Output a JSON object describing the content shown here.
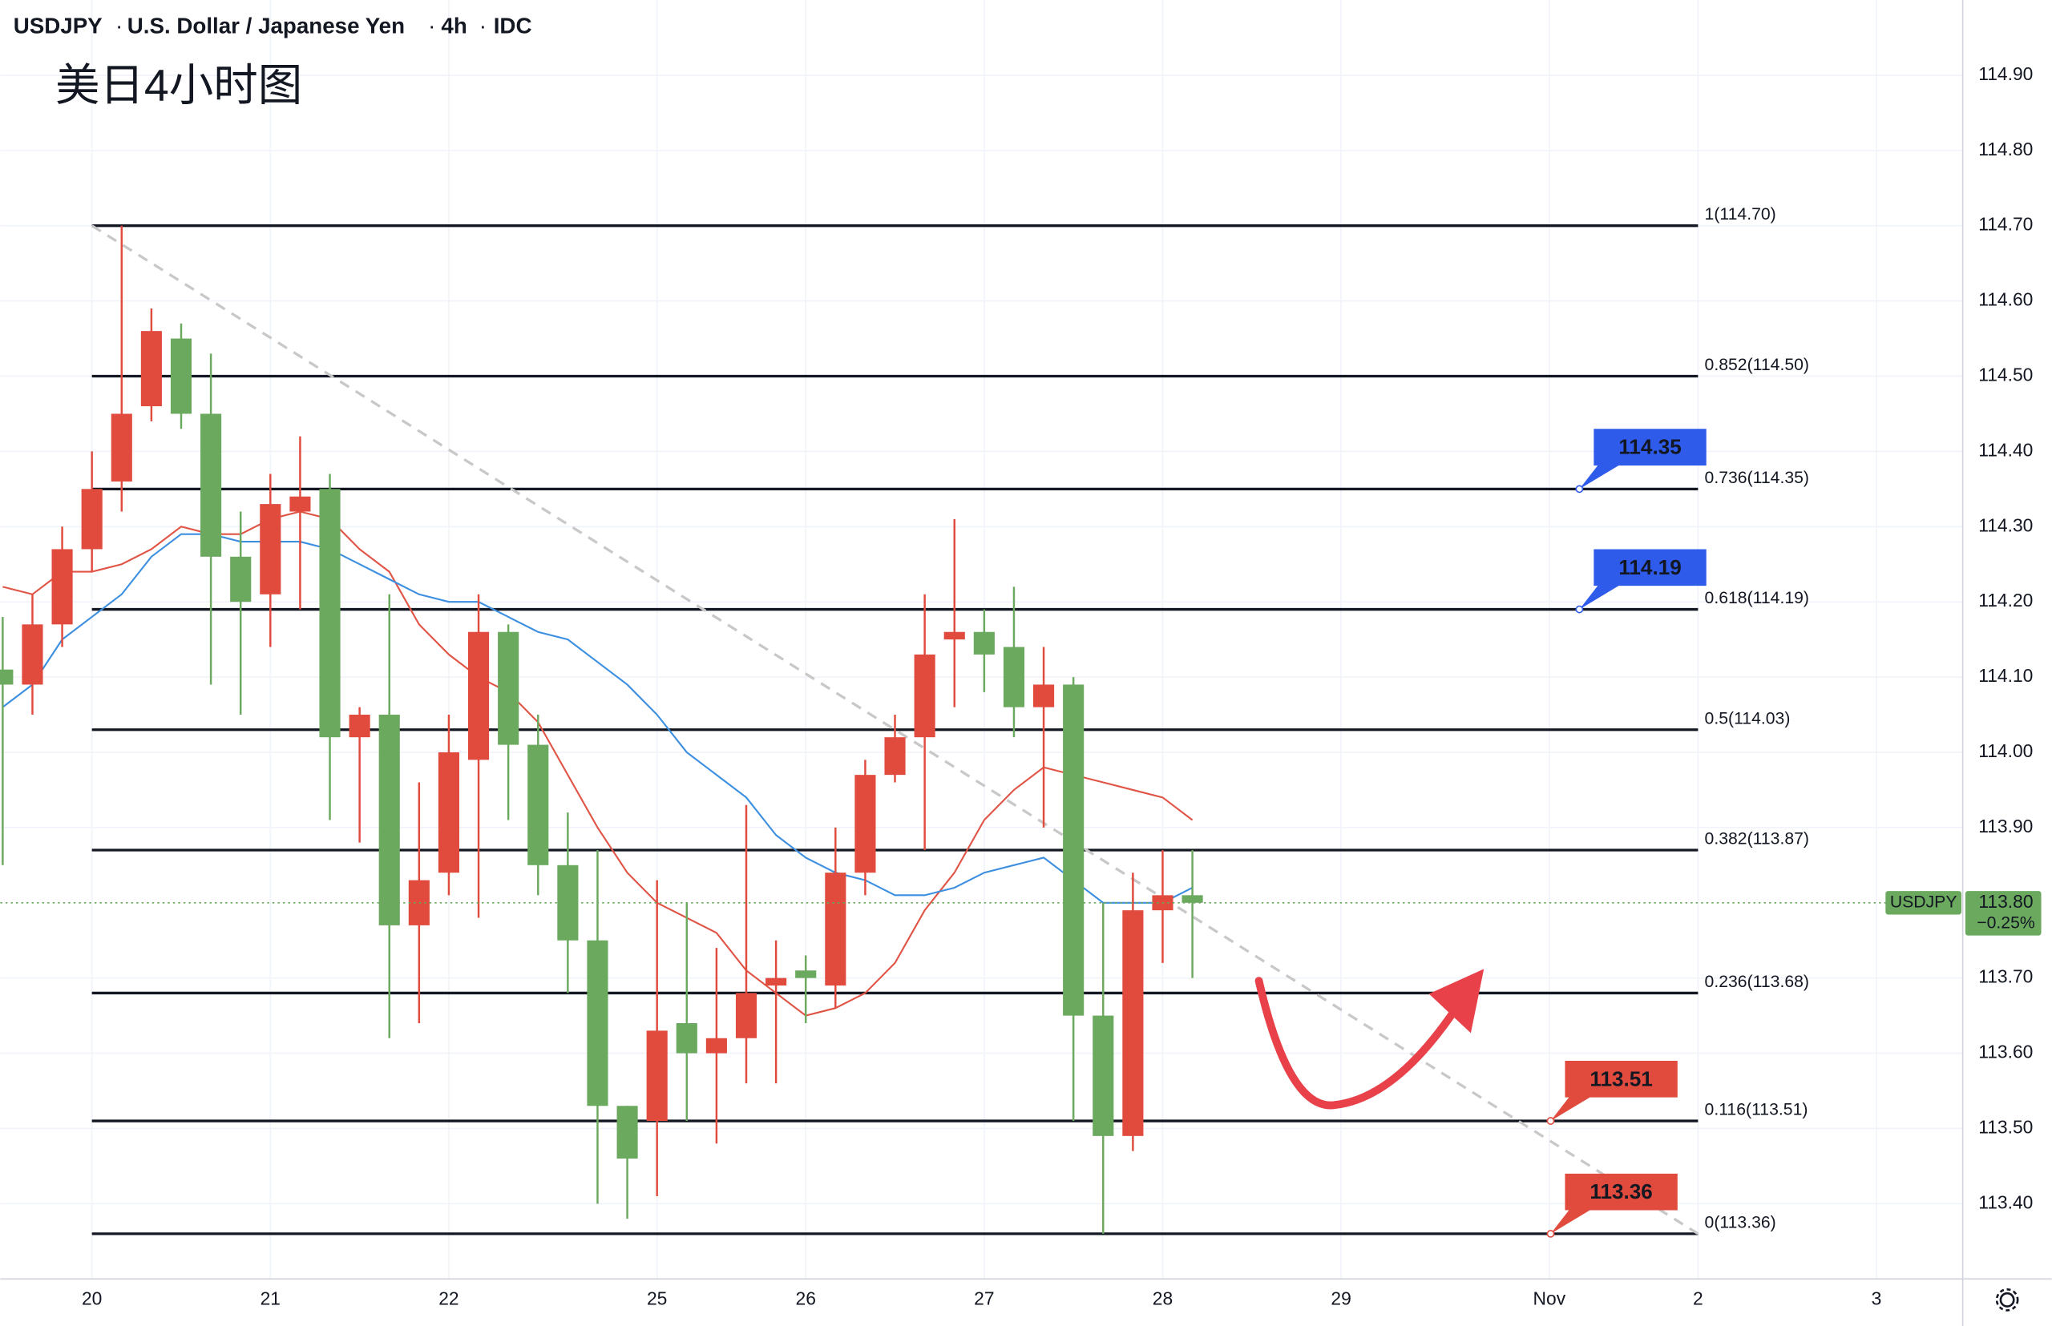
{
  "chart_data": {
    "type": "candlestick",
    "symbol": "USDJPY",
    "description": "U.S. Dollar / Japanese Yen",
    "interval": "4h",
    "source": "IDC",
    "title": "美日4小时图",
    "up_color": "#6aa95e",
    "down_color": "#e04b3e",
    "x": [
      0,
      1,
      2,
      3,
      4,
      5,
      6,
      7,
      8,
      9,
      10,
      11,
      12,
      13,
      14,
      15,
      16,
      17,
      18,
      19,
      20,
      21,
      22,
      23,
      24,
      25,
      26,
      27,
      28,
      29,
      30,
      31,
      32,
      33,
      34,
      35,
      36,
      37,
      38,
      39,
      40
    ],
    "open": [
      114.09,
      114.17,
      114.27,
      114.35,
      114.45,
      114.56,
      114.45,
      114.26,
      114.2,
      114.33,
      114.34,
      114.02,
      114.05,
      113.77,
      113.83,
      114.0,
      114.16,
      114.01,
      113.85,
      113.75,
      113.53,
      113.46,
      113.63,
      113.6,
      113.62,
      113.68,
      113.7,
      113.7,
      113.84,
      113.97,
      114.02,
      114.13,
      114.16,
      114.13,
      114.06,
      114.09,
      113.65,
      113.49,
      113.79,
      113.81,
      113.8
    ],
    "high": [
      114.18,
      114.21,
      114.3,
      114.4,
      114.7,
      114.59,
      114.57,
      114.53,
      114.32,
      114.37,
      114.42,
      114.37,
      114.06,
      114.21,
      113.96,
      114.05,
      114.21,
      114.17,
      114.05,
      113.92,
      113.87,
      113.53,
      113.83,
      113.8,
      113.74,
      113.93,
      113.75,
      113.73,
      113.9,
      113.99,
      114.05,
      114.21,
      114.31,
      114.19,
      114.22,
      114.14,
      114.1,
      113.8,
      113.84,
      113.87,
      113.87
    ],
    "low": [
      113.85,
      114.05,
      114.14,
      114.24,
      114.32,
      114.44,
      114.43,
      114.09,
      114.05,
      114.14,
      114.19,
      113.91,
      113.88,
      113.62,
      113.64,
      113.81,
      113.78,
      113.91,
      113.81,
      113.68,
      113.4,
      113.38,
      113.41,
      113.51,
      113.48,
      113.56,
      113.56,
      113.64,
      113.66,
      113.81,
      113.96,
      113.87,
      114.06,
      114.08,
      114.02,
      113.9,
      113.51,
      113.36,
      113.47,
      113.72,
      113.7
    ],
    "close": [
      114.11,
      114.09,
      114.17,
      114.27,
      114.36,
      114.46,
      114.55,
      114.45,
      114.26,
      114.21,
      114.32,
      114.35,
      114.02,
      114.05,
      113.77,
      113.84,
      113.99,
      114.16,
      114.01,
      113.85,
      113.75,
      113.53,
      113.51,
      113.64,
      113.6,
      113.62,
      113.69,
      113.71,
      113.69,
      113.84,
      113.97,
      114.02,
      114.15,
      114.16,
      114.14,
      114.06,
      114.09,
      113.65,
      113.49,
      113.79,
      113.81
    ],
    "series": [
      {
        "color": "#e05446",
        "values": [
          114.22,
          114.21,
          114.24,
          114.24,
          114.25,
          114.27,
          114.3,
          114.29,
          114.29,
          114.31,
          114.32,
          114.31,
          114.27,
          114.24,
          114.17,
          114.13,
          114.1,
          114.08,
          114.04,
          113.97,
          113.9,
          113.84,
          113.8,
          113.78,
          113.76,
          113.71,
          113.68,
          113.65,
          113.66,
          113.68,
          113.72,
          113.79,
          113.84,
          113.91,
          113.95,
          113.98,
          113.97,
          113.96,
          113.95,
          113.94,
          113.91
        ]
      },
      {
        "color": "#3d8fe0",
        "values": [
          114.06,
          114.09,
          114.15,
          114.18,
          114.21,
          114.26,
          114.29,
          114.29,
          114.28,
          114.28,
          114.28,
          114.27,
          114.25,
          114.23,
          114.21,
          114.2,
          114.2,
          114.18,
          114.16,
          114.15,
          114.12,
          114.09,
          114.05,
          114.0,
          113.97,
          113.94,
          113.89,
          113.86,
          113.84,
          113.83,
          113.81,
          113.81,
          113.82,
          113.84,
          113.85,
          113.86,
          113.83,
          113.8,
          113.8,
          113.8,
          113.82
        ]
      }
    ],
    "fib_levels": [
      {
        "value": 114.7,
        "label": "1(114.70)"
      },
      {
        "value": 114.5,
        "label": "0.852(114.50)"
      },
      {
        "value": 114.35,
        "label": "0.736(114.35)"
      },
      {
        "value": 114.19,
        "label": "0.618(114.19)"
      },
      {
        "value": 114.03,
        "label": "0.5(114.03)"
      },
      {
        "value": 113.87,
        "label": "0.382(113.87)"
      },
      {
        "value": 113.68,
        "label": "0.236(113.68)"
      },
      {
        "value": 113.51,
        "label": "0.116(113.51)"
      },
      {
        "value": 113.36,
        "label": "0(113.36)"
      }
    ],
    "price_tags": [
      {
        "value": 114.35,
        "color": "#2f5bea"
      },
      {
        "value": 114.19,
        "color": "#2f5bea"
      },
      {
        "value": 113.51,
        "color": "#e04b3e"
      },
      {
        "value": 113.36,
        "color": "#e04b3e"
      }
    ],
    "last_price": {
      "value": 113.8,
      "label": "113.80"
    },
    "change": "−0.25%",
    "xlim": [
      -0.08,
      65.9
    ],
    "ylim": [
      113.3,
      115.0
    ],
    "xticks": [
      {
        "value": 3,
        "label": "20"
      },
      {
        "value": 9,
        "label": "21"
      },
      {
        "value": 15,
        "label": "22"
      },
      {
        "value": 22,
        "label": "25"
      },
      {
        "value": 27,
        "label": "26"
      },
      {
        "value": 33,
        "label": "27"
      },
      {
        "value": 39,
        "label": "28"
      },
      {
        "value": 45,
        "label": "29"
      },
      {
        "value": 52,
        "label": "Nov"
      },
      {
        "value": 57,
        "label": "2"
      },
      {
        "value": 63,
        "label": "3"
      }
    ],
    "yticks": [
      {
        "value": 114.9,
        "label": "114.90"
      },
      {
        "value": 114.8,
        "label": "114.80"
      },
      {
        "value": 114.7,
        "label": "114.70"
      },
      {
        "value": 114.6,
        "label": "114.60"
      },
      {
        "value": 114.5,
        "label": "114.50"
      },
      {
        "value": 114.4,
        "label": "114.40"
      },
      {
        "value": 114.3,
        "label": "114.30"
      },
      {
        "value": 114.2,
        "label": "114.20"
      },
      {
        "value": 114.1,
        "label": "114.10"
      },
      {
        "value": 114.0,
        "label": "114.00"
      },
      {
        "value": 113.9,
        "label": "113.90"
      },
      {
        "value": 113.7,
        "label": "113.70"
      },
      {
        "value": 113.6,
        "label": "113.60"
      },
      {
        "value": 113.5,
        "label": "113.50"
      },
      {
        "value": 113.4,
        "label": "113.40"
      }
    ],
    "grid": true
  }
}
